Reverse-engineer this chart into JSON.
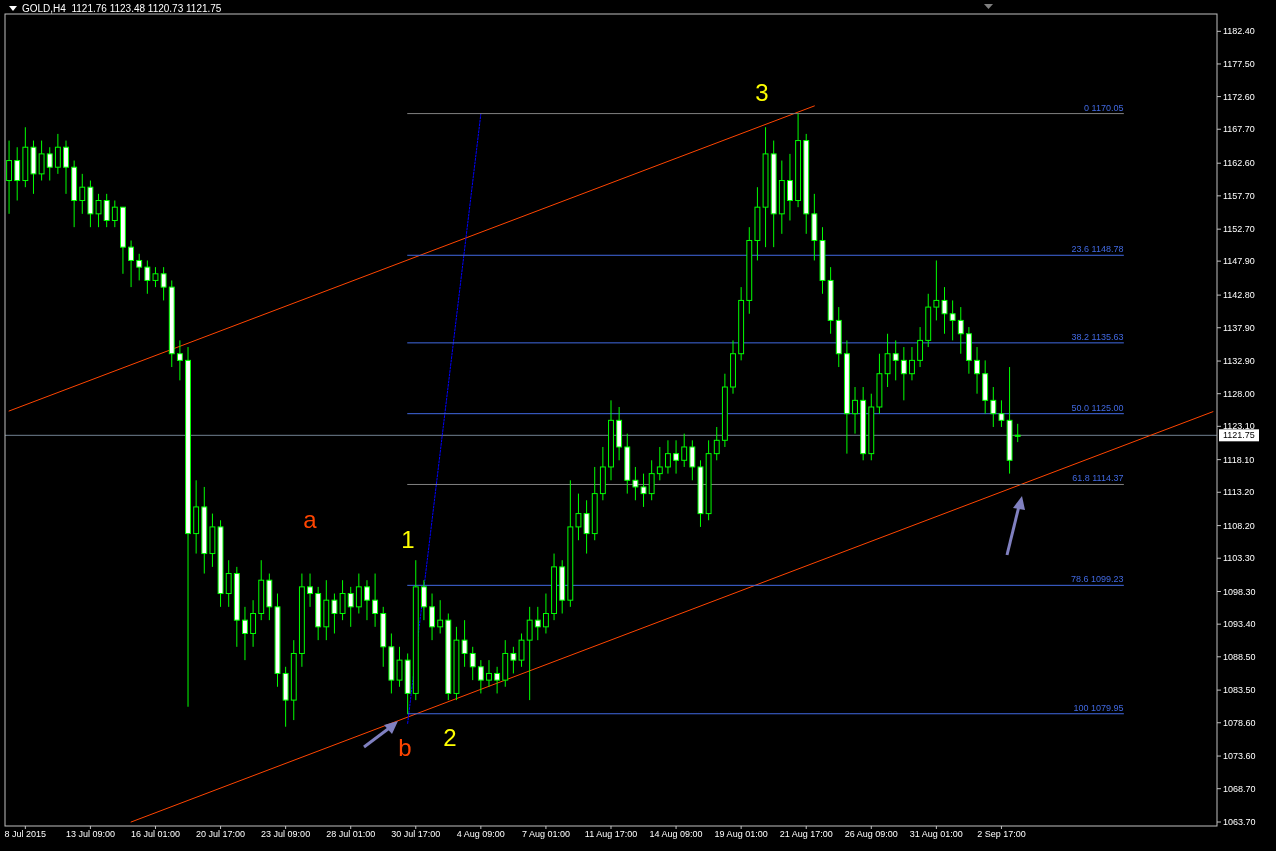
{
  "chart_data": {
    "type": "candlestick",
    "title": "GOLD,H4  1121.76 1123.48 1120.73 1121.75",
    "color": "#00ff00",
    "categories": [
      null,
      null,
      "8 Jul 2015",
      null,
      null,
      null,
      null,
      null,
      null,
      null,
      "13 Jul 09:00",
      null,
      null,
      null,
      null,
      null,
      null,
      null,
      "16 Jul 01:00",
      null,
      null,
      null,
      null,
      null,
      null,
      null,
      "20 Jul 17:00",
      null,
      null,
      null,
      null,
      null,
      null,
      null,
      "23 Jul 09:00",
      null,
      null,
      null,
      null,
      null,
      null,
      null,
      "28 Jul 01:00",
      null,
      null,
      null,
      null,
      null,
      null,
      null,
      "30 Jul 17:00",
      null,
      null,
      null,
      null,
      null,
      null,
      null,
      "4 Aug 09:00",
      null,
      null,
      null,
      null,
      null,
      null,
      null,
      "7 Aug 01:00",
      null,
      null,
      null,
      null,
      null,
      null,
      null,
      "11 Aug 17:00",
      null,
      null,
      null,
      null,
      null,
      null,
      null,
      "14 Aug 09:00",
      null,
      null,
      null,
      null,
      null,
      null,
      null,
      "19 Aug 01:00",
      null,
      null,
      null,
      null,
      null,
      null,
      null,
      "21 Aug 17:00",
      null,
      null,
      null,
      null,
      null,
      null,
      null,
      "26 Aug 09:00",
      null,
      null,
      null,
      null,
      null,
      null,
      null,
      "31 Aug 01:00",
      null,
      null,
      null,
      null,
      null,
      null,
      null,
      "2 Sep 17:00",
      null,
      null,
      null,
      null,
      null,
      null,
      null,
      null,
      null,
      null,
      null,
      null,
      null,
      null,
      null,
      null,
      null,
      null,
      null,
      null,
      null,
      null,
      null,
      null,
      null,
      null
    ],
    "ohlc": [
      [
        1160,
        1166,
        1155,
        1163
      ],
      [
        1163,
        1165,
        1157,
        1160
      ],
      [
        1160,
        1168,
        1159,
        1165
      ],
      [
        1165,
        1166,
        1158,
        1161
      ],
      [
        1161,
        1166,
        1160,
        1164
      ],
      [
        1164,
        1165,
        1160,
        1162
      ],
      [
        1162,
        1167,
        1161,
        1165
      ],
      [
        1165,
        1166,
        1158,
        1162
      ],
      [
        1162,
        1163,
        1153,
        1157
      ],
      [
        1157,
        1161,
        1155,
        1159
      ],
      [
        1159,
        1160,
        1153,
        1155
      ],
      [
        1155,
        1158,
        1153,
        1157
      ],
      [
        1157,
        1158,
        1153,
        1154
      ],
      [
        1154,
        1157,
        1153,
        1156
      ],
      [
        1156,
        1156,
        1146,
        1150
      ],
      [
        1150,
        1151,
        1144,
        1148
      ],
      [
        1148,
        1149,
        1145,
        1147
      ],
      [
        1147,
        1148,
        1143,
        1145
      ],
      [
        1145,
        1147,
        1144,
        1146
      ],
      [
        1146,
        1147,
        1142,
        1144
      ],
      [
        1144,
        1145,
        1132,
        1134
      ],
      [
        1134,
        1136,
        1130,
        1133
      ],
      [
        1133,
        1135,
        1081,
        1107
      ],
      [
        1107,
        1115,
        1104,
        1111
      ],
      [
        1111,
        1114,
        1101,
        1104
      ],
      [
        1104,
        1110,
        1102,
        1108
      ],
      [
        1108,
        1109,
        1096,
        1098
      ],
      [
        1098,
        1103,
        1096,
        1101
      ],
      [
        1101,
        1102,
        1090,
        1094
      ],
      [
        1094,
        1096,
        1088,
        1092
      ],
      [
        1092,
        1097,
        1090,
        1095
      ],
      [
        1095,
        1103,
        1094,
        1100
      ],
      [
        1100,
        1101,
        1094,
        1096
      ],
      [
        1096,
        1098,
        1084,
        1086
      ],
      [
        1086,
        1087,
        1078,
        1082
      ],
      [
        1082,
        1091,
        1079,
        1089
      ],
      [
        1089,
        1101,
        1087,
        1099
      ],
      [
        1099,
        1101,
        1096,
        1098
      ],
      [
        1098,
        1099,
        1091,
        1093
      ],
      [
        1093,
        1100,
        1091,
        1097
      ],
      [
        1097,
        1098,
        1092,
        1095
      ],
      [
        1095,
        1100,
        1094,
        1098
      ],
      [
        1098,
        1099,
        1093,
        1096
      ],
      [
        1096,
        1101,
        1095,
        1099
      ],
      [
        1099,
        1100,
        1094,
        1097
      ],
      [
        1097,
        1101,
        1093,
        1095
      ],
      [
        1095,
        1096,
        1087,
        1090
      ],
      [
        1090,
        1092,
        1083,
        1085
      ],
      [
        1085,
        1090,
        1084,
        1088
      ],
      [
        1088,
        1089,
        1079.95,
        1083
      ],
      [
        1083,
        1103,
        1082,
        1099
      ],
      [
        1099,
        1100,
        1094,
        1096
      ],
      [
        1096,
        1098,
        1091,
        1093
      ],
      [
        1093,
        1097,
        1092,
        1094
      ],
      [
        1094,
        1095,
        1082,
        1083
      ],
      [
        1083,
        1093,
        1082,
        1091
      ],
      [
        1091,
        1094,
        1087,
        1089
      ],
      [
        1089,
        1090,
        1085,
        1087
      ],
      [
        1087,
        1088,
        1083,
        1085
      ],
      [
        1085,
        1088,
        1084,
        1086
      ],
      [
        1086,
        1087,
        1083,
        1085
      ],
      [
        1085,
        1091,
        1084,
        1089
      ],
      [
        1089,
        1090,
        1086,
        1088
      ],
      [
        1088,
        1092,
        1087,
        1091
      ],
      [
        1091,
        1096,
        1082,
        1094
      ],
      [
        1094,
        1096,
        1091,
        1093
      ],
      [
        1093,
        1098,
        1092,
        1095
      ],
      [
        1095,
        1104,
        1094,
        1102
      ],
      [
        1102,
        1103,
        1095,
        1097
      ],
      [
        1097,
        1115,
        1096,
        1108
      ],
      [
        1108,
        1113,
        1106,
        1110
      ],
      [
        1110,
        1112,
        1104,
        1107
      ],
      [
        1107,
        1117,
        1106,
        1113
      ],
      [
        1113,
        1120,
        1112,
        1117
      ],
      [
        1117,
        1127,
        1115,
        1124
      ],
      [
        1124,
        1126,
        1118,
        1120
      ],
      [
        1120,
        1122,
        1113,
        1115
      ],
      [
        1115,
        1117,
        1112,
        1114
      ],
      [
        1114,
        1116,
        1111,
        1113
      ],
      [
        1113,
        1118,
        1112,
        1116
      ],
      [
        1116,
        1120,
        1115,
        1117
      ],
      [
        1117,
        1121,
        1116,
        1119
      ],
      [
        1119,
        1121,
        1116,
        1118
      ],
      [
        1118,
        1122,
        1117,
        1120
      ],
      [
        1120,
        1121,
        1115,
        1117
      ],
      [
        1117,
        1118,
        1108,
        1110
      ],
      [
        1110,
        1121,
        1109,
        1119
      ],
      [
        1119,
        1123,
        1118,
        1121
      ],
      [
        1121,
        1131,
        1120,
        1129
      ],
      [
        1129,
        1136,
        1128,
        1134
      ],
      [
        1134,
        1144,
        1133,
        1142
      ],
      [
        1142,
        1153,
        1140,
        1151
      ],
      [
        1151,
        1159,
        1148,
        1156
      ],
      [
        1156,
        1168,
        1150,
        1164
      ],
      [
        1164,
        1166,
        1150,
        1155
      ],
      [
        1155,
        1163,
        1152,
        1160
      ],
      [
        1160,
        1164,
        1154,
        1157
      ],
      [
        1157,
        1170.05,
        1156,
        1166
      ],
      [
        1166,
        1167,
        1152,
        1155
      ],
      [
        1155,
        1158,
        1148,
        1151
      ],
      [
        1151,
        1153,
        1143,
        1145
      ],
      [
        1145,
        1147,
        1137,
        1139
      ],
      [
        1139,
        1141,
        1132,
        1134
      ],
      [
        1134,
        1136,
        1119,
        1125
      ],
      [
        1125,
        1129,
        1122,
        1127
      ],
      [
        1127,
        1129,
        1118,
        1119
      ],
      [
        1119,
        1128,
        1118,
        1126
      ],
      [
        1126,
        1134,
        1125,
        1131
      ],
      [
        1131,
        1137,
        1129,
        1134
      ],
      [
        1134,
        1136,
        1130,
        1133
      ],
      [
        1133,
        1135,
        1127,
        1131
      ],
      [
        1131,
        1135,
        1130,
        1133
      ],
      [
        1133,
        1138,
        1132,
        1136
      ],
      [
        1136,
        1143,
        1135,
        1141
      ],
      [
        1141,
        1148,
        1139,
        1142
      ],
      [
        1142,
        1144,
        1137,
        1140
      ],
      [
        1140,
        1142,
        1136,
        1139
      ],
      [
        1139,
        1141,
        1134,
        1137
      ],
      [
        1137,
        1138,
        1131,
        1133
      ],
      [
        1133,
        1135,
        1128,
        1131
      ],
      [
        1131,
        1133,
        1125,
        1127
      ],
      [
        1127,
        1129,
        1123,
        1125
      ],
      [
        1125,
        1127,
        1123,
        1124
      ],
      [
        1124,
        1132,
        1116,
        1118
      ],
      [
        1121.76,
        1123.48,
        1120.73,
        1121.75
      ],
      null,
      null,
      null,
      null,
      null,
      null,
      null,
      null,
      null,
      null,
      null,
      null,
      null,
      null,
      null,
      null,
      null,
      null,
      null,
      null,
      null,
      null,
      null,
      null
    ],
    "series": [
      {
        "type": "line",
        "color": "#ff4500",
        "line_style": "solid",
        "values": [
          1125.4,
          null,
          null,
          null,
          null,
          null,
          null,
          null,
          null,
          null,
          null,
          null,
          null,
          null,
          null,
          null,
          null,
          null,
          null,
          null,
          null,
          null,
          null,
          null,
          null,
          null,
          null,
          null,
          null,
          null,
          null,
          null,
          null,
          null,
          null,
          null,
          null,
          null,
          null,
          null,
          null,
          null,
          null,
          null,
          null,
          null,
          null,
          null,
          null,
          null,
          null,
          null,
          null,
          null,
          null,
          null,
          null,
          null,
          null,
          null,
          null,
          null,
          null,
          null,
          null,
          null,
          null,
          null,
          null,
          null,
          null,
          null,
          null,
          null,
          null,
          null,
          null,
          null,
          null,
          null,
          null,
          null,
          null,
          null,
          null,
          null,
          null,
          null,
          null,
          null,
          null,
          null,
          null,
          null,
          null,
          null,
          null,
          null,
          null,
          1171.2,
          null,
          null,
          null,
          null,
          null,
          null,
          null,
          null,
          null,
          null,
          null,
          null,
          null,
          null,
          null,
          null,
          null,
          null,
          null,
          null,
          null,
          null,
          null,
          null,
          null,
          null,
          null,
          null,
          null,
          null,
          null,
          null,
          null,
          null,
          null,
          null,
          null,
          null,
          null,
          null,
          null,
          null,
          null,
          null,
          null,
          null,
          null,
          null,
          null
        ]
      },
      {
        "type": "line",
        "color": "#ff4500",
        "line_style": "solid",
        "values": [
          null,
          null,
          null,
          null,
          null,
          null,
          null,
          null,
          null,
          null,
          null,
          null,
          null,
          null,
          null,
          1063.7,
          null,
          null,
          null,
          null,
          null,
          null,
          null,
          null,
          null,
          null,
          null,
          null,
          null,
          null,
          null,
          null,
          null,
          null,
          null,
          null,
          null,
          null,
          null,
          null,
          null,
          null,
          null,
          null,
          null,
          null,
          null,
          null,
          null,
          null,
          null,
          null,
          null,
          null,
          null,
          null,
          null,
          null,
          null,
          null,
          null,
          null,
          null,
          null,
          null,
          null,
          null,
          null,
          null,
          null,
          null,
          null,
          null,
          null,
          null,
          null,
          null,
          null,
          null,
          null,
          null,
          null,
          null,
          null,
          null,
          null,
          null,
          null,
          null,
          null,
          null,
          null,
          null,
          null,
          null,
          null,
          null,
          null,
          null,
          null,
          null,
          null,
          null,
          null,
          null,
          null,
          null,
          null,
          null,
          null,
          null,
          null,
          null,
          null,
          null,
          null,
          null,
          null,
          null,
          null,
          null,
          null,
          null,
          null,
          null,
          null,
          null,
          null,
          null,
          null,
          null,
          null,
          null,
          null,
          null,
          null,
          null,
          null,
          null,
          null,
          null,
          null,
          null,
          null,
          null,
          null,
          null,
          null,
          1125.3
        ]
      },
      {
        "type": "line",
        "color": "#0000ff",
        "line_style": "dotted",
        "values": [
          null,
          null,
          null,
          null,
          null,
          null,
          null,
          null,
          null,
          null,
          null,
          null,
          null,
          null,
          null,
          null,
          null,
          null,
          null,
          null,
          null,
          null,
          null,
          null,
          null,
          null,
          null,
          null,
          null,
          null,
          null,
          null,
          null,
          null,
          null,
          null,
          null,
          null,
          null,
          null,
          null,
          null,
          null,
          null,
          null,
          null,
          null,
          null,
          null,
          1078.5,
          null,
          null,
          null,
          null,
          null,
          null,
          null,
          null,
          1170,
          null,
          null,
          null,
          null,
          null,
          null,
          null,
          null,
          null,
          null,
          null,
          null,
          null,
          null,
          null,
          null,
          null,
          null,
          null,
          null,
          null,
          null,
          null,
          null,
          null,
          null,
          null,
          null,
          null,
          null,
          null,
          null,
          null,
          null,
          null,
          null,
          null,
          null,
          null,
          null,
          null,
          null,
          null,
          null,
          null,
          null,
          null,
          null,
          null,
          null,
          null,
          null,
          null,
          null,
          null,
          null,
          null,
          null,
          null,
          null,
          null,
          null,
          null,
          null,
          null,
          null,
          null,
          null,
          null,
          null,
          null,
          null,
          null,
          null,
          null,
          null,
          null,
          null,
          null,
          null,
          null,
          null,
          null,
          null,
          null,
          null,
          null,
          null,
          null,
          null
        ]
      },
      {
        "type": "line",
        "name": "0 1170.05",
        "color": "#808080",
        "line_style": "solid",
        "values": [
          null,
          null,
          null,
          null,
          null,
          null,
          null,
          null,
          null,
          null,
          null,
          null,
          null,
          null,
          null,
          null,
          null,
          null,
          null,
          null,
          null,
          null,
          null,
          null,
          null,
          null,
          null,
          null,
          null,
          null,
          null,
          null,
          null,
          null,
          null,
          null,
          null,
          null,
          null,
          null,
          null,
          null,
          null,
          null,
          null,
          null,
          null,
          null,
          null,
          1170.05,
          null,
          null,
          null,
          null,
          null,
          null,
          null,
          null,
          null,
          null,
          null,
          null,
          null,
          null,
          null,
          null,
          null,
          null,
          null,
          null,
          null,
          null,
          null,
          null,
          null,
          null,
          null,
          null,
          null,
          null,
          null,
          null,
          null,
          null,
          null,
          null,
          null,
          null,
          null,
          null,
          null,
          null,
          null,
          null,
          null,
          null,
          null,
          null,
          null,
          null,
          null,
          null,
          null,
          null,
          null,
          null,
          null,
          null,
          null,
          null,
          null,
          null,
          null,
          null,
          null,
          null,
          null,
          null,
          null,
          null,
          null,
          null,
          null,
          null,
          null,
          null,
          null,
          null,
          null,
          null,
          null,
          null,
          null,
          null,
          null,
          null,
          null,
          1170.05,
          null,
          null,
          null,
          null,
          null,
          null,
          null,
          null,
          null,
          null,
          null
        ]
      },
      {
        "type": "line",
        "name": "23.6 1148.78",
        "color": "#4169e1",
        "line_style": "solid",
        "values": [
          null,
          null,
          null,
          null,
          null,
          null,
          null,
          null,
          null,
          null,
          null,
          null,
          null,
          null,
          null,
          null,
          null,
          null,
          null,
          null,
          null,
          null,
          null,
          null,
          null,
          null,
          null,
          null,
          null,
          null,
          null,
          null,
          null,
          null,
          null,
          null,
          null,
          null,
          null,
          null,
          null,
          null,
          null,
          null,
          null,
          null,
          null,
          null,
          null,
          1148.78,
          null,
          null,
          null,
          null,
          null,
          null,
          null,
          null,
          null,
          null,
          null,
          null,
          null,
          null,
          null,
          null,
          null,
          null,
          null,
          null,
          null,
          null,
          null,
          null,
          null,
          null,
          null,
          null,
          null,
          null,
          null,
          null,
          null,
          null,
          null,
          null,
          null,
          null,
          null,
          null,
          null,
          null,
          null,
          null,
          null,
          null,
          null,
          null,
          null,
          null,
          null,
          null,
          null,
          null,
          null,
          null,
          null,
          null,
          null,
          null,
          null,
          null,
          null,
          null,
          null,
          null,
          null,
          null,
          null,
          null,
          null,
          null,
          null,
          null,
          null,
          null,
          null,
          null,
          null,
          null,
          null,
          null,
          null,
          null,
          null,
          null,
          null,
          1148.78,
          null,
          null,
          null,
          null,
          null,
          null,
          null,
          null,
          null,
          null,
          null
        ]
      },
      {
        "type": "line",
        "name": "38.2 1135.63",
        "color": "#4169e1",
        "line_style": "solid",
        "values": [
          null,
          null,
          null,
          null,
          null,
          null,
          null,
          null,
          null,
          null,
          null,
          null,
          null,
          null,
          null,
          null,
          null,
          null,
          null,
          null,
          null,
          null,
          null,
          null,
          null,
          null,
          null,
          null,
          null,
          null,
          null,
          null,
          null,
          null,
          null,
          null,
          null,
          null,
          null,
          null,
          null,
          null,
          null,
          null,
          null,
          null,
          null,
          null,
          null,
          1135.63,
          null,
          null,
          null,
          null,
          null,
          null,
          null,
          null,
          null,
          null,
          null,
          null,
          null,
          null,
          null,
          null,
          null,
          null,
          null,
          null,
          null,
          null,
          null,
          null,
          null,
          null,
          null,
          null,
          null,
          null,
          null,
          null,
          null,
          null,
          null,
          null,
          null,
          null,
          null,
          null,
          null,
          null,
          null,
          null,
          null,
          null,
          null,
          null,
          null,
          null,
          null,
          null,
          null,
          null,
          null,
          null,
          null,
          null,
          null,
          null,
          null,
          null,
          null,
          null,
          null,
          null,
          null,
          null,
          null,
          null,
          null,
          null,
          null,
          null,
          null,
          null,
          null,
          null,
          null,
          null,
          null,
          null,
          null,
          null,
          null,
          null,
          null,
          1135.63,
          null,
          null,
          null,
          null,
          null,
          null,
          null,
          null,
          null,
          null,
          null
        ]
      },
      {
        "type": "line",
        "name": "50.0 1125.00",
        "color": "#4169e1",
        "line_style": "solid",
        "values": [
          null,
          null,
          null,
          null,
          null,
          null,
          null,
          null,
          null,
          null,
          null,
          null,
          null,
          null,
          null,
          null,
          null,
          null,
          null,
          null,
          null,
          null,
          null,
          null,
          null,
          null,
          null,
          null,
          null,
          null,
          null,
          null,
          null,
          null,
          null,
          null,
          null,
          null,
          null,
          null,
          null,
          null,
          null,
          null,
          null,
          null,
          null,
          null,
          null,
          1125,
          null,
          null,
          null,
          null,
          null,
          null,
          null,
          null,
          null,
          null,
          null,
          null,
          null,
          null,
          null,
          null,
          null,
          null,
          null,
          null,
          null,
          null,
          null,
          null,
          null,
          null,
          null,
          null,
          null,
          null,
          null,
          null,
          null,
          null,
          null,
          null,
          null,
          null,
          null,
          null,
          null,
          null,
          null,
          null,
          null,
          null,
          null,
          null,
          null,
          null,
          null,
          null,
          null,
          null,
          null,
          null,
          null,
          null,
          null,
          null,
          null,
          null,
          null,
          null,
          null,
          null,
          null,
          null,
          null,
          null,
          null,
          null,
          null,
          null,
          null,
          null,
          null,
          null,
          null,
          null,
          null,
          null,
          null,
          null,
          null,
          null,
          null,
          1125,
          null,
          null,
          null,
          null,
          null,
          null,
          null,
          null,
          null,
          null,
          null
        ]
      },
      {
        "type": "line",
        "name": "61.8 1114.37",
        "color": "#808080",
        "line_style": "solid",
        "values": [
          null,
          null,
          null,
          null,
          null,
          null,
          null,
          null,
          null,
          null,
          null,
          null,
          null,
          null,
          null,
          null,
          null,
          null,
          null,
          null,
          null,
          null,
          null,
          null,
          null,
          null,
          null,
          null,
          null,
          null,
          null,
          null,
          null,
          null,
          null,
          null,
          null,
          null,
          null,
          null,
          null,
          null,
          null,
          null,
          null,
          null,
          null,
          null,
          null,
          1114.37,
          null,
          null,
          null,
          null,
          null,
          null,
          null,
          null,
          null,
          null,
          null,
          null,
          null,
          null,
          null,
          null,
          null,
          null,
          null,
          null,
          null,
          null,
          null,
          null,
          null,
          null,
          null,
          null,
          null,
          null,
          null,
          null,
          null,
          null,
          null,
          null,
          null,
          null,
          null,
          null,
          null,
          null,
          null,
          null,
          null,
          null,
          null,
          null,
          null,
          null,
          null,
          null,
          null,
          null,
          null,
          null,
          null,
          null,
          null,
          null,
          null,
          null,
          null,
          null,
          null,
          null,
          null,
          null,
          null,
          null,
          null,
          null,
          null,
          null,
          null,
          null,
          null,
          null,
          null,
          null,
          null,
          null,
          null,
          null,
          null,
          null,
          null,
          1114.37,
          null,
          null,
          null,
          null,
          null,
          null,
          null,
          null,
          null,
          null,
          null
        ]
      },
      {
        "type": "line",
        "name": "78.6 1099.23",
        "color": "#4169e1",
        "line_style": "solid",
        "values": [
          null,
          null,
          null,
          null,
          null,
          null,
          null,
          null,
          null,
          null,
          null,
          null,
          null,
          null,
          null,
          null,
          null,
          null,
          null,
          null,
          null,
          null,
          null,
          null,
          null,
          null,
          null,
          null,
          null,
          null,
          null,
          null,
          null,
          null,
          null,
          null,
          null,
          null,
          null,
          null,
          null,
          null,
          null,
          null,
          null,
          null,
          null,
          null,
          null,
          1099.23,
          null,
          null,
          null,
          null,
          null,
          null,
          null,
          null,
          null,
          null,
          null,
          null,
          null,
          null,
          null,
          null,
          null,
          null,
          null,
          null,
          null,
          null,
          null,
          null,
          null,
          null,
          null,
          null,
          null,
          null,
          null,
          null,
          null,
          null,
          null,
          null,
          null,
          null,
          null,
          null,
          null,
          null,
          null,
          null,
          null,
          null,
          null,
          null,
          null,
          null,
          null,
          null,
          null,
          null,
          null,
          null,
          null,
          null,
          null,
          null,
          null,
          null,
          null,
          null,
          null,
          null,
          null,
          null,
          null,
          null,
          null,
          null,
          null,
          null,
          null,
          null,
          null,
          null,
          null,
          null,
          null,
          null,
          null,
          null,
          null,
          null,
          null,
          1099.23,
          null,
          null,
          null,
          null,
          null,
          null,
          null,
          null,
          null,
          null,
          null
        ]
      },
      {
        "type": "line",
        "name": "100 1079.95",
        "color": "#4169e1",
        "line_style": "solid",
        "values": [
          null,
          null,
          null,
          null,
          null,
          null,
          null,
          null,
          null,
          null,
          null,
          null,
          null,
          null,
          null,
          null,
          null,
          null,
          null,
          null,
          null,
          null,
          null,
          null,
          null,
          null,
          null,
          null,
          null,
          null,
          null,
          null,
          null,
          null,
          null,
          null,
          null,
          null,
          null,
          null,
          null,
          null,
          null,
          null,
          null,
          null,
          null,
          null,
          null,
          1079.95,
          null,
          null,
          null,
          null,
          null,
          null,
          null,
          null,
          null,
          null,
          null,
          null,
          null,
          null,
          null,
          null,
          null,
          null,
          null,
          null,
          null,
          null,
          null,
          null,
          null,
          null,
          null,
          null,
          null,
          null,
          null,
          null,
          null,
          null,
          null,
          null,
          null,
          null,
          null,
          null,
          null,
          null,
          null,
          null,
          null,
          null,
          null,
          null,
          null,
          null,
          null,
          null,
          null,
          null,
          null,
          null,
          null,
          null,
          null,
          null,
          null,
          null,
          null,
          null,
          null,
          null,
          null,
          null,
          null,
          null,
          null,
          null,
          null,
          null,
          null,
          null,
          null,
          null,
          null,
          null,
          null,
          null,
          null,
          null,
          null,
          null,
          null,
          1079.95,
          null,
          null,
          null,
          null,
          null,
          null,
          null,
          null,
          null,
          null,
          null
        ]
      }
    ],
    "ref_lines": [
      {
        "axis": "y",
        "value": 1121.75,
        "label": "1121.75",
        "color": "#708090"
      }
    ],
    "annotations": [
      "3",
      "1",
      "2",
      "a",
      "b"
    ],
    "ylim": [
      1063.1,
      1185
    ],
    "yticks": [
      {
        "value": 1182.4,
        "label": "1182.40"
      },
      {
        "value": 1177.5,
        "label": "1177.50"
      },
      {
        "value": 1172.6,
        "label": "1172.60"
      },
      {
        "value": 1167.7,
        "label": "1167.70"
      },
      {
        "value": 1162.6,
        "label": "1162.60"
      },
      {
        "value": 1157.7,
        "label": "1157.70"
      },
      {
        "value": 1152.7,
        "label": "1152.70"
      },
      {
        "value": 1147.9,
        "label": "1147.90"
      },
      {
        "value": 1142.8,
        "label": "1142.80"
      },
      {
        "value": 1137.9,
        "label": "1137.90"
      },
      {
        "value": 1132.9,
        "label": "1132.90"
      },
      {
        "value": 1128,
        "label": "1128.00"
      },
      {
        "value": 1123.1,
        "label": "1123.10"
      },
      {
        "value": 1118.1,
        "label": "1118.10"
      },
      {
        "value": 1113.2,
        "label": "1113.20"
      },
      {
        "value": 1108.2,
        "label": "1108.20"
      },
      {
        "value": 1103.3,
        "label": "1103.30"
      },
      {
        "value": 1098.3,
        "label": "1098.30"
      },
      {
        "value": 1093.4,
        "label": "1093.40"
      },
      {
        "value": 1088.5,
        "label": "1088.50"
      },
      {
        "value": 1083.5,
        "label": "1083.50"
      },
      {
        "value": 1078.6,
        "label": "1078.60"
      },
      {
        "value": 1073.6,
        "label": "1073.60"
      },
      {
        "value": 1068.7,
        "label": "1068.70"
      },
      {
        "value": 1063.7,
        "label": "1063.70"
      }
    ],
    "grid": false
  }
}
